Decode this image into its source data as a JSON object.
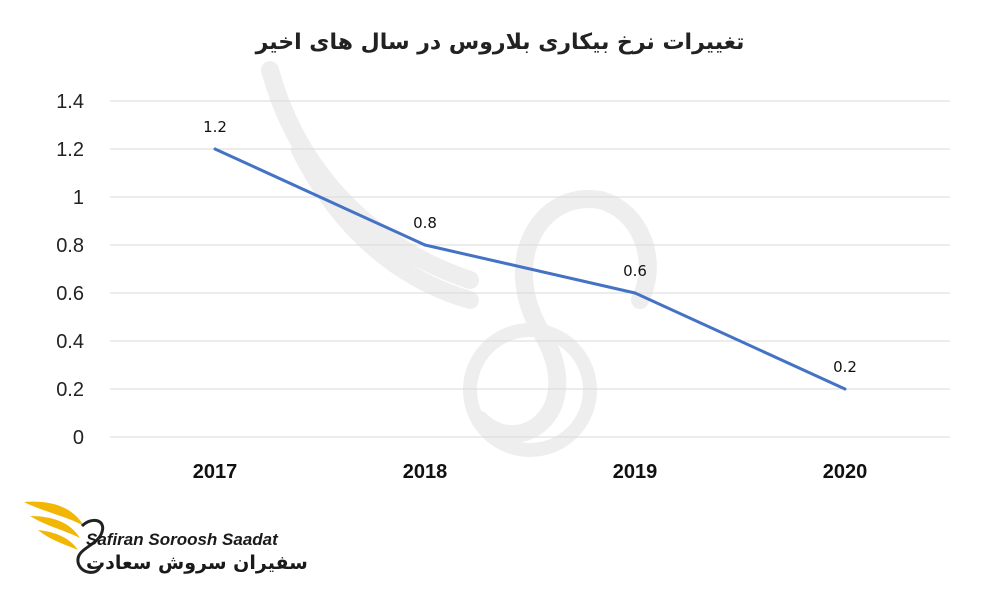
{
  "chart_data": {
    "type": "line",
    "title": "تغییرات نرخ بیکاری بلاروس در سال های اخیر",
    "categories": [
      "2017",
      "2018",
      "2019",
      "2020"
    ],
    "series": [
      {
        "values": [
          1.2,
          0.8,
          0.6,
          0.2
        ]
      }
    ],
    "data_labels": [
      "1.2",
      "0.8",
      "0.6",
      "0.2"
    ],
    "y_ticks": [
      "0",
      "0.2",
      "0.4",
      "0.6",
      "0.8",
      "1",
      "1.2",
      "1.4"
    ],
    "ylim": [
      0,
      1.4
    ],
    "grid": true,
    "line_color": "#4472c4",
    "grid_color": "#d9d9d9"
  },
  "watermark": {
    "icon": "swan-wing-logo-icon",
    "brand_en": "Safiran Soroosh Saadat",
    "brand_fa": "سفیران سروش سعادت",
    "accent_color": "#f2b705"
  }
}
